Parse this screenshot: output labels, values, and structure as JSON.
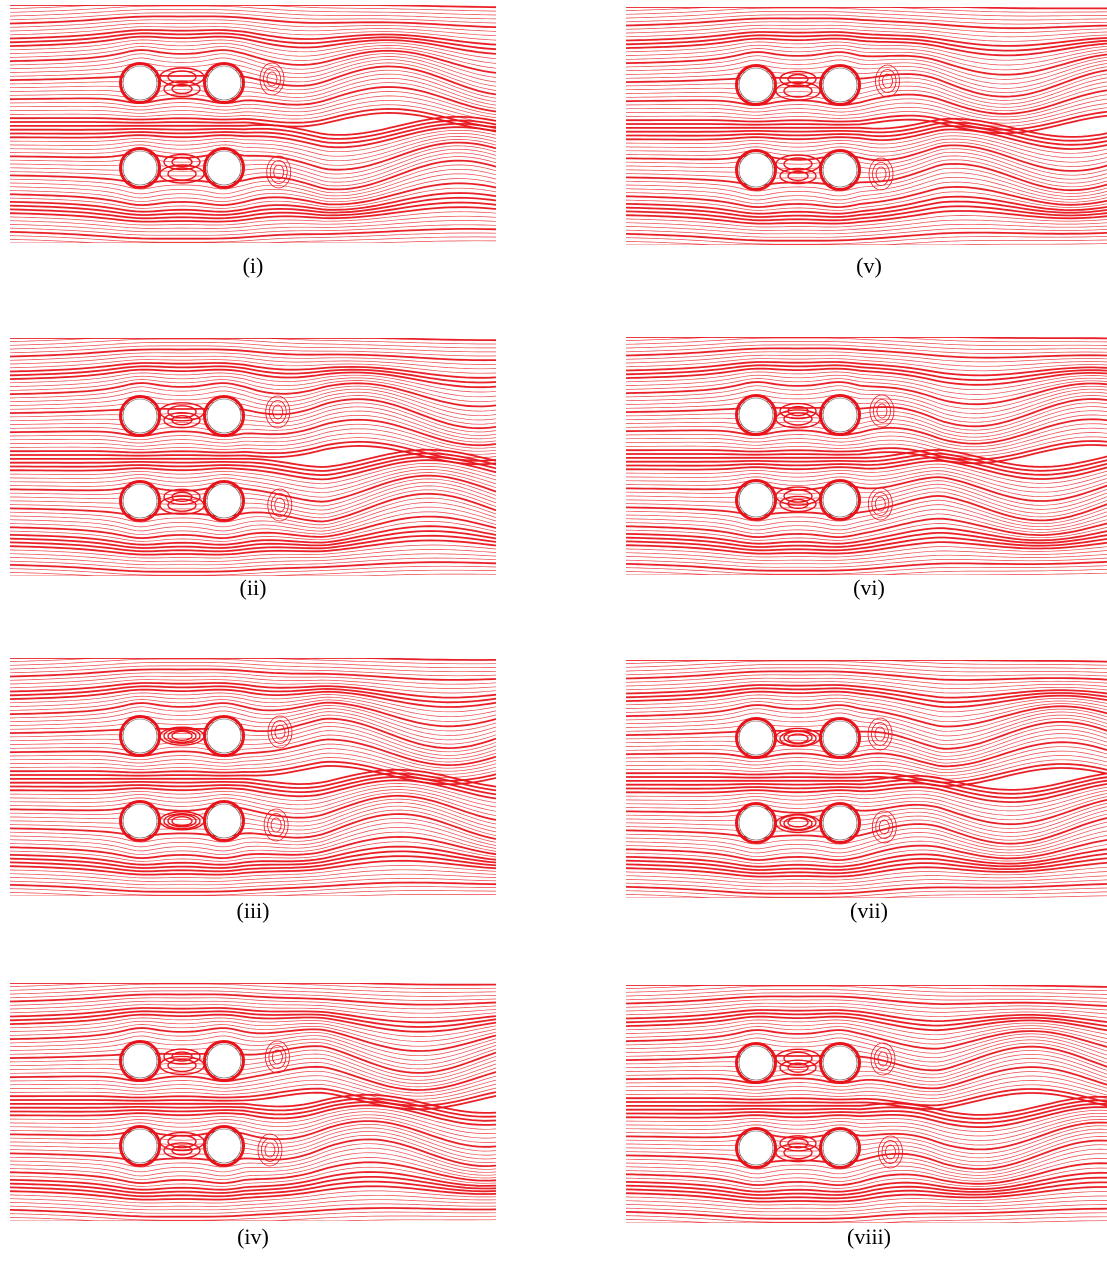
{
  "colors": {
    "streamline": "#e8141b",
    "background": "#ffffff",
    "cylinder_fill": "#ffffff",
    "caption_text": "#000000"
  },
  "panels": [
    {
      "caption": "(i)",
      "phase": 0.0
    },
    {
      "caption": "(ii)",
      "phase": 0.8
    },
    {
      "caption": "(iii)",
      "phase": 1.6
    },
    {
      "caption": "(iv)",
      "phase": 2.4
    },
    {
      "caption": "(v)",
      "phase": 3.2
    },
    {
      "caption": "(vi)",
      "phase": 4.0
    },
    {
      "caption": "(vii)",
      "phase": 4.8
    },
    {
      "caption": "(viii)",
      "phase": 5.6
    }
  ]
}
